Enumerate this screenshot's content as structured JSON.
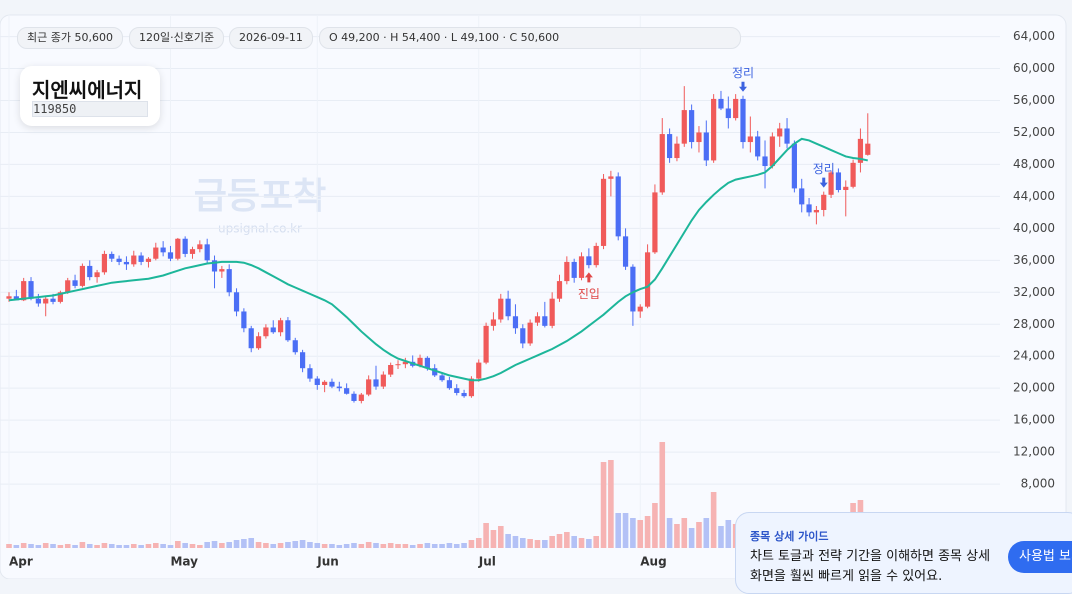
{
  "header": {
    "pills": [
      "최근 종가 50,600",
      "120일·신호기준",
      "2026-09-11",
      "O 49,200 · H 54,400 · L 49,100 · C 50,600"
    ],
    "name": "지엔씨에너지",
    "code": "119850",
    "watermark": "급등포착",
    "watermark_url": "upsignal.co.kr"
  },
  "guide": {
    "title": "종목 상세 가이드",
    "lines": [
      "차트 토글과 전략 기간을 이해하면 종목 상세",
      "화면을 훨씬 빠르게 읽을 수 있어요."
    ],
    "button": "사용법 보기"
  },
  "chart_data": {
    "type": "candlestick",
    "up_color": "#f05a5a",
    "down_color": "#4b6ef5",
    "up_volume_color": "#f6b3b3",
    "down_volume_color": "#b3c1f6",
    "grid": true,
    "ylim": [
      0,
      66700
    ],
    "yticks": [
      {
        "value": 8000,
        "label": "8,000"
      },
      {
        "value": 12000,
        "label": "12,000"
      },
      {
        "value": 16000,
        "label": "16,000"
      },
      {
        "value": 20000,
        "label": "20,000"
      },
      {
        "value": 24000,
        "label": "24,000"
      },
      {
        "value": 28000,
        "label": "28,000"
      },
      {
        "value": 32000,
        "label": "32,000"
      },
      {
        "value": 36000,
        "label": "36,000"
      },
      {
        "value": 40000,
        "label": "40,000"
      },
      {
        "value": 44000,
        "label": "44,000"
      },
      {
        "value": 48000,
        "label": "48,000"
      },
      {
        "value": 52000,
        "label": "52,000"
      },
      {
        "value": 56000,
        "label": "56,000"
      },
      {
        "value": 60000,
        "label": "60,000"
      },
      {
        "value": 64000,
        "label": "64,000"
      }
    ],
    "vlim": [
      0,
      110
    ],
    "categories": [
      "Apr",
      null,
      null,
      null,
      null,
      null,
      null,
      null,
      null,
      null,
      null,
      null,
      null,
      null,
      null,
      null,
      null,
      null,
      null,
      null,
      null,
      null,
      "May",
      null,
      null,
      null,
      null,
      null,
      null,
      null,
      null,
      null,
      null,
      null,
      null,
      null,
      null,
      null,
      null,
      null,
      null,
      null,
      "Jun",
      null,
      null,
      null,
      null,
      null,
      null,
      null,
      null,
      null,
      null,
      null,
      null,
      null,
      null,
      null,
      null,
      null,
      null,
      null,
      null,
      null,
      "Jul",
      null,
      null,
      null,
      null,
      null,
      null,
      null,
      null,
      null,
      null,
      null,
      null,
      null,
      null,
      null,
      null,
      null,
      null,
      null,
      null,
      null,
      "Aug",
      null,
      null,
      null,
      null,
      null,
      null,
      null,
      null,
      null,
      null,
      null,
      null,
      null,
      null,
      null,
      null,
      null,
      null,
      null,
      null,
      null,
      null,
      null,
      null,
      null,
      null,
      null,
      null,
      null,
      null,
      null
    ],
    "candles": [
      [
        31200,
        32000,
        30800,
        31500
      ],
      [
        31500,
        32300,
        31000,
        31000
      ],
      [
        31000,
        33800,
        30900,
        33400
      ],
      [
        33400,
        33900,
        31000,
        31200
      ],
      [
        31200,
        31800,
        30200,
        30600
      ],
      [
        30600,
        31500,
        29000,
        31200
      ],
      [
        31200,
        31800,
        30500,
        30800
      ],
      [
        30800,
        32200,
        30600,
        32000
      ],
      [
        32000,
        33800,
        31800,
        33500
      ],
      [
        33500,
        34200,
        32500,
        32800
      ],
      [
        32800,
        35600,
        32600,
        35300
      ],
      [
        35300,
        36000,
        33500,
        33900
      ],
      [
        33900,
        34800,
        33200,
        34500
      ],
      [
        34500,
        37200,
        34200,
        36800
      ],
      [
        36800,
        37100,
        35800,
        36200
      ],
      [
        36200,
        36600,
        35400,
        35800
      ],
      [
        35800,
        36500,
        34800,
        35500
      ],
      [
        35500,
        37200,
        35200,
        36600
      ],
      [
        36600,
        37000,
        35400,
        35800
      ],
      [
        35800,
        36400,
        35100,
        36200
      ],
      [
        36200,
        38200,
        36000,
        37600
      ],
      [
        37600,
        38400,
        36500,
        37000
      ],
      [
        37000,
        37800,
        35900,
        36200
      ],
      [
        36200,
        38800,
        36000,
        38700
      ],
      [
        38700,
        39000,
        36400,
        36800
      ],
      [
        36800,
        37700,
        36200,
        37400
      ],
      [
        37400,
        38500,
        37000,
        38000
      ],
      [
        38000,
        38700,
        35500,
        36000
      ],
      [
        36000,
        36600,
        32500,
        34600
      ],
      [
        34600,
        35300,
        33800,
        34900
      ],
      [
        34900,
        35500,
        31500,
        32000
      ],
      [
        32000,
        32500,
        29000,
        29600
      ],
      [
        29600,
        30000,
        27000,
        27500
      ],
      [
        27500,
        27800,
        24500,
        25000
      ],
      [
        25000,
        27000,
        24800,
        26500
      ],
      [
        26500,
        28000,
        26200,
        27600
      ],
      [
        27600,
        28500,
        26800,
        27000
      ],
      [
        27000,
        28800,
        26500,
        28500
      ],
      [
        28500,
        28900,
        25800,
        26000
      ],
      [
        26000,
        26300,
        24200,
        24500
      ],
      [
        24500,
        24800,
        22000,
        22500
      ],
      [
        22500,
        23000,
        20800,
        21200
      ],
      [
        21200,
        21500,
        19800,
        20400
      ],
      [
        20400,
        21000,
        19500,
        20800
      ],
      [
        20800,
        21200,
        20000,
        20200
      ],
      [
        20200,
        20800,
        19600,
        20000
      ],
      [
        20000,
        20600,
        19200,
        19300
      ],
      [
        19300,
        19600,
        18200,
        18400
      ],
      [
        18400,
        19400,
        18100,
        19200
      ],
      [
        19200,
        21600,
        19000,
        21100
      ],
      [
        21100,
        22800,
        19800,
        20200
      ],
      [
        20200,
        22100,
        19900,
        21700
      ],
      [
        21700,
        23200,
        21400,
        22900
      ],
      [
        22900,
        23500,
        22400,
        23000
      ],
      [
        23000,
        23800,
        22500,
        23300
      ],
      [
        23300,
        24100,
        22600,
        22800
      ],
      [
        22800,
        24200,
        22600,
        23800
      ],
      [
        23800,
        24000,
        22200,
        22500
      ],
      [
        22500,
        23000,
        21400,
        21600
      ],
      [
        21600,
        22000,
        20800,
        21000
      ],
      [
        21000,
        21400,
        19800,
        20000
      ],
      [
        20000,
        20500,
        19100,
        19400
      ],
      [
        19400,
        19800,
        18800,
        19000
      ],
      [
        19000,
        21500,
        18800,
        21200
      ],
      [
        21200,
        23600,
        20800,
        23200
      ],
      [
        23200,
        28200,
        23000,
        27800
      ],
      [
        27800,
        29500,
        27200,
        28600
      ],
      [
        28600,
        31800,
        28200,
        31200
      ],
      [
        31200,
        32200,
        28500,
        29000
      ],
      [
        29000,
        30500,
        26800,
        27500
      ],
      [
        27500,
        28000,
        25000,
        25600
      ],
      [
        25600,
        28600,
        25300,
        28200
      ],
      [
        28200,
        29500,
        27800,
        29000
      ],
      [
        29000,
        30800,
        27600,
        27800
      ],
      [
        27800,
        32000,
        27500,
        31200
      ],
      [
        31200,
        34200,
        30800,
        33400
      ],
      [
        33400,
        36500,
        33000,
        35800
      ],
      [
        35800,
        36200,
        33200,
        33800
      ],
      [
        33800,
        37000,
        33500,
        36500
      ],
      [
        36500,
        37500,
        35000,
        35400
      ],
      [
        35400,
        38200,
        35100,
        37800
      ],
      [
        37800,
        46800,
        37400,
        46200
      ],
      [
        46200,
        47200,
        44000,
        46500
      ],
      [
        46500,
        47000,
        38500,
        39000
      ],
      [
        39000,
        40000,
        34800,
        35200
      ],
      [
        35200,
        35500,
        27800,
        29600
      ],
      [
        29600,
        30500,
        28800,
        30200
      ],
      [
        30200,
        38000,
        30000,
        37000
      ],
      [
        37000,
        45500,
        36800,
        44500
      ],
      [
        44500,
        53800,
        44200,
        51800
      ],
      [
        51800,
        52500,
        48200,
        48800
      ],
      [
        48800,
        51500,
        48400,
        50600
      ],
      [
        50600,
        57800,
        50200,
        54800
      ],
      [
        54800,
        55500,
        50000,
        50800
      ],
      [
        50800,
        52800,
        49500,
        52000
      ],
      [
        52000,
        53500,
        47800,
        48500
      ],
      [
        48500,
        56800,
        48200,
        56200
      ],
      [
        56200,
        57200,
        54800,
        55000
      ],
      [
        55000,
        56500,
        52500,
        53800
      ],
      [
        53800,
        56800,
        53500,
        56200
      ],
      [
        56200,
        56600,
        50000,
        50800
      ],
      [
        50800,
        54000,
        49500,
        51500
      ],
      [
        51500,
        52200,
        48500,
        49000
      ],
      [
        49000,
        51000,
        45000,
        47800
      ],
      [
        47800,
        52000,
        47500,
        51500
      ],
      [
        51500,
        53200,
        50200,
        52500
      ],
      [
        52500,
        53800,
        50000,
        50600
      ],
      [
        50600,
        51000,
        44500,
        45000
      ],
      [
        45000,
        46200,
        42000,
        43000
      ],
      [
        43000,
        43800,
        41500,
        42000
      ],
      [
        42000,
        42800,
        40500,
        42300
      ],
      [
        42300,
        44600,
        41500,
        44200
      ],
      [
        44200,
        47200,
        43800,
        47000
      ],
      [
        47000,
        47500,
        44500,
        44800
      ],
      [
        44800,
        46000,
        41500,
        45200
      ],
      [
        45200,
        48600,
        45000,
        48200
      ],
      [
        48200,
        52500,
        47000,
        51200
      ],
      [
        49200,
        54400,
        49100,
        50600
      ]
    ],
    "volume": [
      4,
      3,
      5,
      4,
      3,
      5,
      4,
      3,
      4,
      3,
      6,
      4,
      3,
      5,
      4,
      3,
      3,
      4,
      3,
      4,
      5,
      4,
      3,
      7,
      5,
      4,
      3,
      6,
      7,
      5,
      6,
      8,
      9,
      10,
      6,
      5,
      4,
      5,
      6,
      7,
      8,
      6,
      5,
      4,
      4,
      3,
      4,
      5,
      4,
      6,
      5,
      4,
      5,
      4,
      4,
      3,
      4,
      5,
      4,
      4,
      5,
      4,
      5,
      8,
      10,
      25,
      18,
      22,
      14,
      12,
      10,
      9,
      8,
      8,
      12,
      14,
      16,
      12,
      10,
      9,
      12,
      86,
      88,
      35,
      35,
      30,
      28,
      32,
      45,
      106,
      30,
      24,
      30,
      20,
      26,
      30,
      56,
      22,
      28,
      24,
      30,
      20,
      18,
      20,
      16,
      18,
      14,
      22,
      16,
      14,
      12,
      14,
      16,
      12,
      14,
      45,
      48,
      30
    ],
    "ma": {
      "color": "#1db69a",
      "values": [
        31000,
        31100,
        31200,
        31300,
        31400,
        31500,
        31600,
        31800,
        32000,
        32200,
        32400,
        32600,
        32800,
        33000,
        33200,
        33300,
        33400,
        33500,
        33600,
        33700,
        33900,
        34100,
        34400,
        34700,
        35000,
        35200,
        35400,
        35600,
        35700,
        35800,
        35800,
        35800,
        35700,
        35400,
        35000,
        34500,
        34000,
        33500,
        33000,
        32600,
        32200,
        31800,
        31400,
        31000,
        30500,
        29700,
        28900,
        28000,
        27100,
        26300,
        25500,
        24800,
        24200,
        23700,
        23400,
        23100,
        22800,
        22500,
        22200,
        21900,
        21600,
        21400,
        21200,
        21000,
        21000,
        21200,
        21500,
        21900,
        22400,
        22900,
        23300,
        23700,
        24100,
        24500,
        24900,
        25400,
        25900,
        26500,
        27100,
        27800,
        28500,
        29200,
        30000,
        30800,
        31500,
        32000,
        32400,
        32700,
        33600,
        35000,
        36500,
        38000,
        39500,
        41000,
        42300,
        43300,
        44200,
        45000,
        45700,
        46100,
        46300,
        46500,
        46700,
        47000,
        47800,
        48800,
        49800,
        50600,
        51200,
        51000,
        50600,
        50200,
        49800,
        49400,
        49000,
        48800,
        48700,
        48500
      ]
    },
    "signals": [
      null,
      null,
      null,
      null,
      null,
      null,
      null,
      null,
      null,
      null,
      null,
      null,
      null,
      null,
      null,
      null,
      null,
      null,
      null,
      null,
      null,
      null,
      null,
      null,
      null,
      null,
      null,
      null,
      null,
      null,
      null,
      null,
      null,
      null,
      null,
      null,
      null,
      null,
      null,
      null,
      null,
      null,
      null,
      null,
      null,
      null,
      null,
      null,
      null,
      null,
      null,
      null,
      null,
      null,
      null,
      null,
      null,
      null,
      null,
      null,
      null,
      null,
      null,
      null,
      null,
      null,
      null,
      null,
      null,
      null,
      null,
      null,
      null,
      null,
      null,
      null,
      null,
      null,
      null,
      {
        "label": "진입",
        "color": "#e04848",
        "side": "below"
      },
      null,
      null,
      null,
      null,
      null,
      null,
      null,
      null,
      null,
      null,
      null,
      null,
      null,
      null,
      null,
      null,
      null,
      null,
      null,
      null,
      {
        "label": "정리",
        "color": "#3c63e0",
        "side": "above"
      },
      null,
      null,
      null,
      null,
      null,
      null,
      null,
      null,
      null,
      null,
      {
        "label": "정리",
        "color": "#3c63e0",
        "side": "above"
      },
      null,
      null,
      null,
      null,
      null,
      null
    ]
  }
}
